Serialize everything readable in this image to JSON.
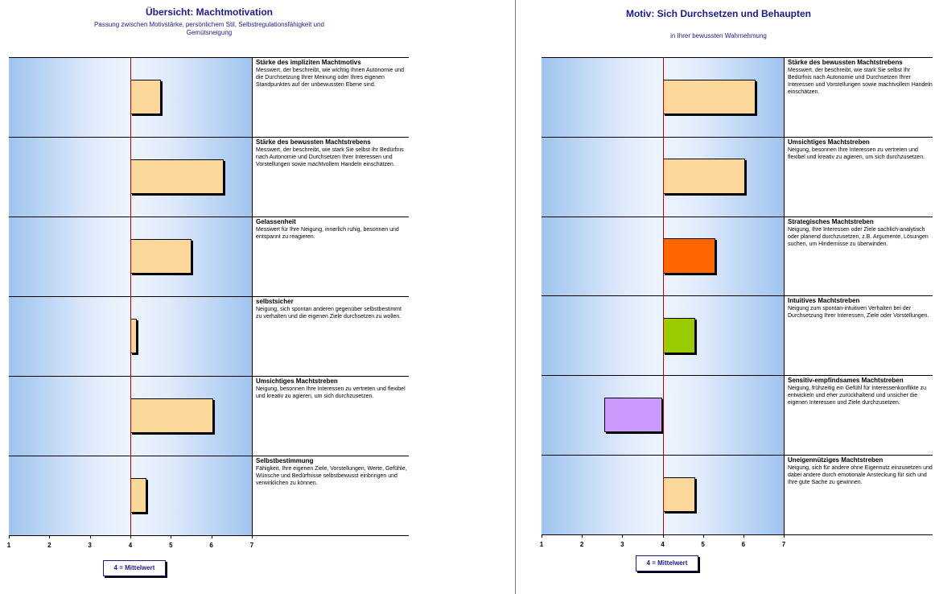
{
  "left": {
    "title": "Übersicht: Machtmotivation",
    "subtitle_line1": "Passung zwischen Motivstärke, persönlichem Stil, Selbstregulationsfähigkeit und",
    "subtitle_line2": "Gemütsneigung",
    "legend": "4 = Mittelwert"
  },
  "right": {
    "title": "Motiv: Sich Durchsetzen und Behaupten",
    "subtitle": "in Ihrer bewussten Wahrnehmung",
    "legend": "4 = Mittelwert"
  },
  "chart_data": [
    {
      "type": "bar",
      "orientation": "horizontal",
      "title": "Übersicht: Machtmotivation",
      "xlim": [
        1,
        7
      ],
      "xticks": [
        "1",
        "2",
        "3",
        "4",
        "5",
        "6",
        "7"
      ],
      "reference_value": 4,
      "categories": [
        {
          "name": "Stärke des impliziten Machtmotivs",
          "desc": "Messwert, der beschreibt, wie wichtig Ihnen Autonomie und die Durchsetzung Ihrer Meinung oder Ihres eigenen Standpunktes auf der unbewussten Ebene sind.",
          "value": 4.75,
          "color": "#fbd89a"
        },
        {
          "name": "Stärke des bewussten Machtstrebens",
          "desc": "Messwert, der beschreibt, wie stark Sie selbst Ihr Bedürfnis nach Autonomie und Durchsetzen Ihrer Interessen und Vorstellungen sowie machtvollem Handeln einschätzen.",
          "value": 6.3,
          "color": "#fbd89a"
        },
        {
          "name": "Gelassenheit",
          "desc": "Messwert für Ihre Neigung, innerlich ruhig, besonnen und entspannt zu reagieren.",
          "value": 5.5,
          "color": "#fbd89a"
        },
        {
          "name": "selbstsicher",
          "desc": "Neigung, sich spontan anderen gegenüber selbstbestimmt zu verhalten und die eigenen Ziele durchsetzen zu wollen.",
          "value": 4.15,
          "color": "#fbd89a"
        },
        {
          "name": "Umsichtiges Machtstreben",
          "desc": "Neigung, besonnen Ihre Interessen zu vertreten und flexibel und kreativ zu agieren, um sich durchzusetzen.",
          "value": 6.05,
          "color": "#fbd89a"
        },
        {
          "name": "Selbstbestimmung",
          "desc": "Fähigkeit, Ihre eigenen Ziele, Vorstellungen, Werte, Gefühle, Wünsche und Bedürfnisse selbstbewusst einbringen und verwirklichen zu können.",
          "value": 4.4,
          "color": "#fbd89a"
        }
      ]
    },
    {
      "type": "bar",
      "orientation": "horizontal",
      "title": "Motiv: Sich Durchsetzen und Behaupten",
      "xlim": [
        1,
        7
      ],
      "xticks": [
        "1",
        "2",
        "3",
        "4",
        "5",
        "6",
        "7"
      ],
      "reference_value": 4,
      "categories": [
        {
          "name": "Stärke des bewussten Machtstrebens",
          "desc": "Messwert, der beschreibt, wie stark Sie selbst Ihr Bedürfnis nach Autonomie und Durchsetzen Ihrer Interessen und Vorstellungen sowie machtvollem Handeln einschätzen.",
          "value": 6.3,
          "color": "#fbd89a"
        },
        {
          "name": "Umsichtiges Machtstreben",
          "desc": "Neigung, besonnen Ihre Interessen zu vertreten und flexibel und kreativ zu agieren, um sich durchzusetzen.",
          "value": 6.05,
          "color": "#fbd89a"
        },
        {
          "name": "Strategisches Machtstreben",
          "desc": "Neigung, Ihre Interessen oder Ziele sachlich-analytisch oder planend durchzusetzen, z.B. Argumente, Lösungen suchen, um Hindernisse zu überwinden.",
          "value": 5.3,
          "color": "#ff6600"
        },
        {
          "name": "Intuitives Machtstreben",
          "desc": "Neigung zum spontan-intuitiven Verhalten bei der Durchsetzung Ihrer Interessen, Ziele oder Vorstellungen.",
          "value": 4.8,
          "color": "#99cc00"
        },
        {
          "name": "Sensitiv-empfindsames Machtstreben",
          "desc": "Neigung, frühzeitig ein Gefühl für Interessenkonflikte zu entwickeln und eher zurückhaltend und unsicher die eigenen Interessen und Ziele durchzusetzen.",
          "value": 2.55,
          "color": "#cc99ff"
        },
        {
          "name": "Uneigennütziges Machtstreben",
          "desc": "Neigung, sich für andere ohne Eigennutz einzusetzen und dabei andere durch emotionale Ansteckung für sich und Ihre gute Sache zu gewinnen.",
          "value": 4.8,
          "color": "#fbd89a"
        }
      ]
    }
  ]
}
